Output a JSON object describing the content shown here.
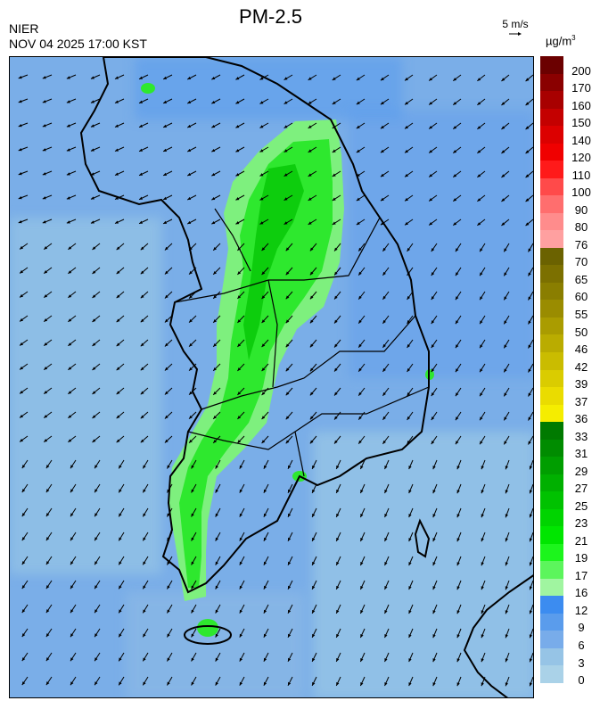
{
  "header": {
    "title": "PM-2.5",
    "org": "NIER",
    "timestamp": "NOV 04 2025 17:00 KST",
    "wind_ref_label": "5 m/s",
    "unit_base": "µg/m",
    "unit_exp": "3"
  },
  "legend": {
    "ticks": [
      "200",
      "170",
      "160",
      "150",
      "140",
      "120",
      "110",
      "100",
      "90",
      "80",
      "76",
      "70",
      "65",
      "60",
      "55",
      "50",
      "46",
      "42",
      "39",
      "37",
      "36",
      "33",
      "31",
      "29",
      "27",
      "25",
      "23",
      "21",
      "19",
      "17",
      "16",
      "12",
      "9",
      "6",
      "3",
      "0"
    ],
    "segment_colors": [
      "#6b0000",
      "#8a0000",
      "#a80000",
      "#c40000",
      "#dc0000",
      "#f00000",
      "#ff1a1a",
      "#ff4a4a",
      "#ff6e6e",
      "#ff8c8c",
      "#ffa0a0",
      "#6b6200",
      "#7c7000",
      "#8a7e00",
      "#9a8c00",
      "#aa9c00",
      "#baac00",
      "#cabc00",
      "#dacc00",
      "#eadc00",
      "#f5ed00",
      "#007a00",
      "#008c00",
      "#009e00",
      "#00b000",
      "#00c200",
      "#00d400",
      "#00e600",
      "#1cf51c",
      "#5cf55c",
      "#a0f5a0",
      "#3c8cf0",
      "#5a9cec",
      "#78acea",
      "#96c4e6",
      "#aad2e8"
    ],
    "levels": {
      "bad": "#ff6e6e",
      "moderate_high": "#c8c000",
      "good_green": "#2ee82e",
      "light_green": "#7ef07e",
      "low_blue": "#5a9cec",
      "lowest": "#96c4e6"
    }
  },
  "map": {
    "background_color": "#7aaee8",
    "coast_color": "#000000"
  }
}
